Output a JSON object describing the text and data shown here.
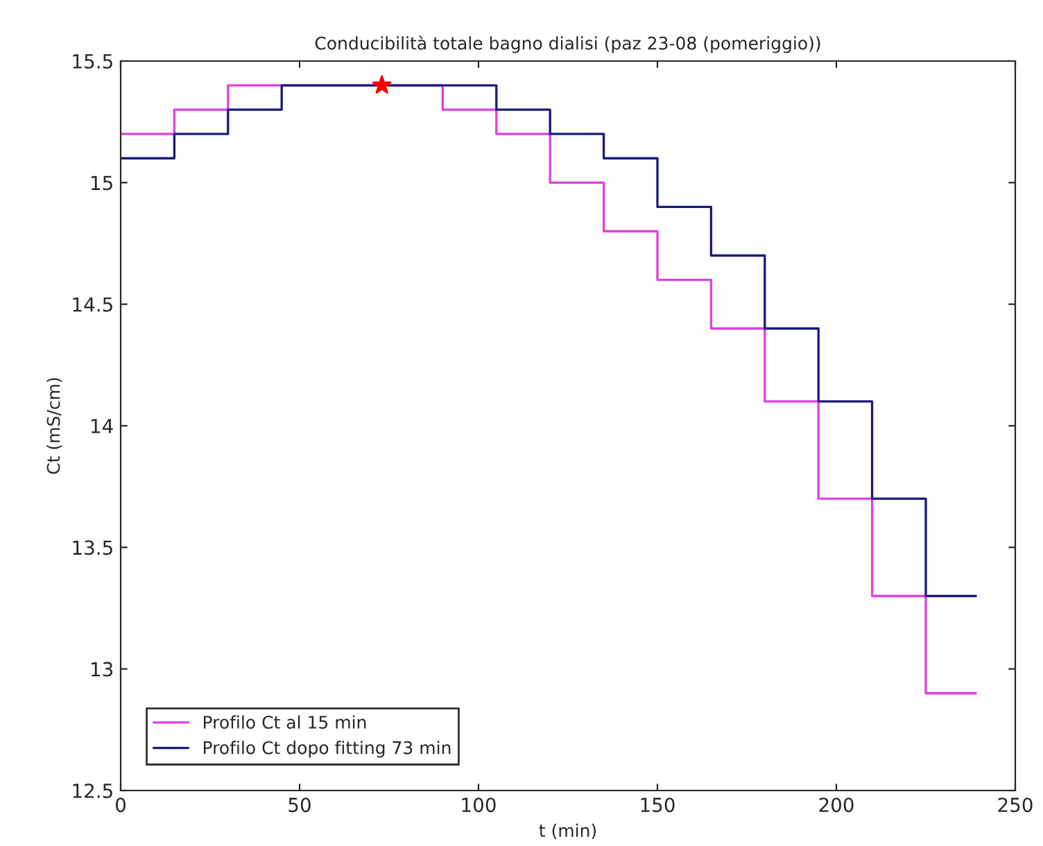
{
  "chart_data": {
    "type": "step",
    "title": "Conducibilità totale bagno dialisi (paz 23-08 (pomeriggio))",
    "xlabel": "t (min)",
    "ylabel": "Ct (mS/cm)",
    "x": [
      0,
      15,
      30,
      45,
      60,
      75,
      90,
      105,
      120,
      135,
      150,
      165,
      180,
      195,
      210,
      225,
      239
    ],
    "series": [
      {
        "name": "Profilo Ct al 15 min",
        "color": "#e23fe0",
        "values": [
          15.2,
          15.3,
          15.4,
          15.4,
          15.4,
          15.4,
          15.3,
          15.2,
          15.0,
          14.8,
          14.6,
          14.4,
          14.1,
          13.7,
          13.3,
          12.9,
          12.9
        ]
      },
      {
        "name": "Profilo Ct dopo fitting 73 min",
        "color": "#1a1a7a",
        "values": [
          15.1,
          15.2,
          15.3,
          15.4,
          15.4,
          15.4,
          15.4,
          15.3,
          15.2,
          15.1,
          14.9,
          14.7,
          14.4,
          14.1,
          13.7,
          13.3,
          13.3
        ]
      },
      {
        "type": "scatter",
        "marker": "star",
        "color": "#ff0000",
        "x": [
          73
        ],
        "values": [
          15.4
        ]
      }
    ],
    "xlim": [
      0,
      250
    ],
    "xticks": [
      0,
      50,
      100,
      150,
      200,
      250
    ],
    "ylim": [
      12.5,
      15.5
    ],
    "yticks": [
      12.5,
      13,
      13.5,
      14,
      14.5,
      15,
      15.5
    ],
    "legend": "bottom left",
    "grid": false
  }
}
